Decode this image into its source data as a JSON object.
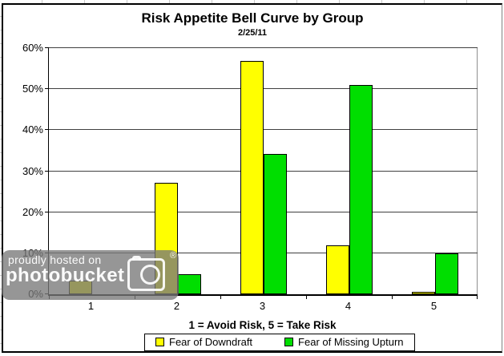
{
  "chart_data": {
    "type": "bar",
    "title": "Risk Appetite Bell Curve by Group",
    "subtitle": "2/25/11",
    "categories": [
      "1",
      "2",
      "3",
      "4",
      "5"
    ],
    "series": [
      {
        "name": "Fear of Downdraft",
        "color": "#FFFF00",
        "values": [
          3.4,
          27.2,
          56.8,
          12.0,
          0.6
        ]
      },
      {
        "name": "Fear of Missing Upturn",
        "color": "#00DE00",
        "values": [
          0,
          4.9,
          34.2,
          51.1,
          9.9
        ]
      }
    ],
    "xlabel": "1 = Avoid Risk, 5 = Take Risk",
    "ylabel": "",
    "ylim": [
      0,
      60
    ],
    "y_tick_step": 10,
    "y_tick_labels": [
      "0%",
      "10%",
      "20%",
      "30%",
      "40%",
      "50%",
      "60%"
    ],
    "grid": true,
    "legend_position": "bottom"
  },
  "colors": {
    "series_yellow": "#FFFF00",
    "series_green": "#00DE00",
    "gridline": "#404040",
    "chart_background": "#FFFFFF",
    "watermark_gray": "#787878"
  },
  "watermark": {
    "line1": "proudly hosted on",
    "line2": "photobucket",
    "registered_mark": "®"
  }
}
